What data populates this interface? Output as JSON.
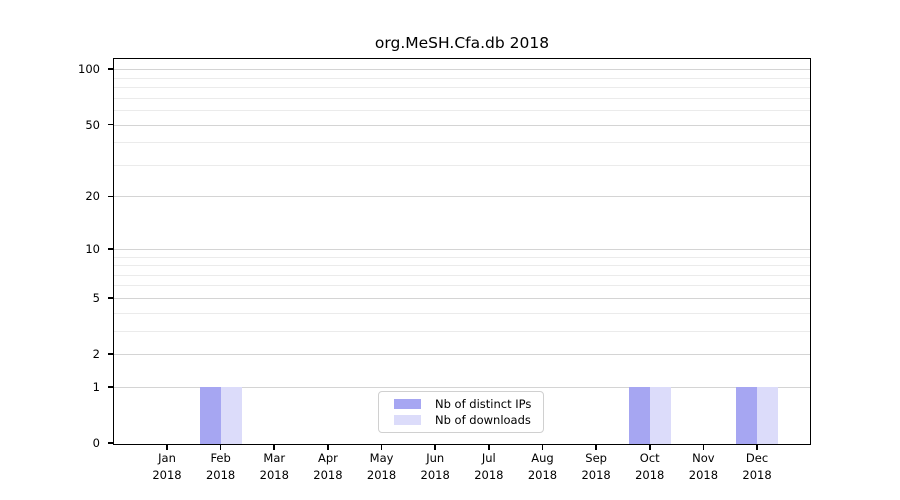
{
  "chart_data": {
    "type": "bar",
    "title": "org.MeSH.Cfa.db 2018",
    "year": "2018",
    "categories": [
      "Jan",
      "Feb",
      "Mar",
      "Apr",
      "May",
      "Jun",
      "Jul",
      "Aug",
      "Sep",
      "Oct",
      "Nov",
      "Dec"
    ],
    "series": [
      {
        "name": "Nb of distinct IPs",
        "color": "#a6a6f2",
        "values": [
          0,
          1,
          0,
          0,
          0,
          0,
          0,
          0,
          0,
          1,
          0,
          1
        ]
      },
      {
        "name": "Nb of downloads",
        "color": "#dcdcfa",
        "values": [
          0,
          1,
          0,
          0,
          0,
          0,
          0,
          0,
          0,
          1,
          0,
          1
        ]
      }
    ],
    "y_axis": {
      "scale": "log1p",
      "ticks": [
        0,
        1,
        2,
        5,
        10,
        20,
        50,
        100
      ],
      "minor_gridlines": [
        3,
        4,
        6,
        7,
        8,
        9,
        30,
        40,
        60,
        70,
        80,
        90
      ],
      "ymin": 0,
      "ymax": 115
    },
    "x_axis": {
      "tick_label_line2": "2018"
    },
    "legend": {
      "position": "lower center",
      "entries": [
        "Nb of distinct IPs",
        "Nb of downloads"
      ]
    },
    "grid": true
  }
}
